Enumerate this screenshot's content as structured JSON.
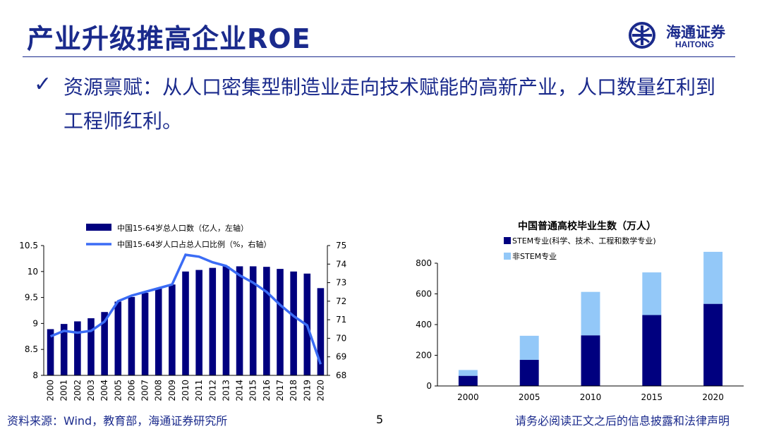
{
  "slide": {
    "title": "产业升级推高企业ROE",
    "bullet": "资源禀赋：从人口密集型制造业走向技术赋能的高新产业，人口数量红利到工程师红利。",
    "check_icon": "check-icon",
    "page_number": "5",
    "source": "资料来源：Wind，教育部，海通证券研究所",
    "disclaimer": "请务必阅读正文之后的信息披露和法律声明"
  },
  "logo": {
    "name": "海通证券",
    "sub": "HAITONG",
    "color": "#1a2a8c"
  },
  "chart_data": [
    {
      "type": "bar",
      "title": "",
      "categories": [
        "2000",
        "2001",
        "2002",
        "2003",
        "2004",
        "2005",
        "2006",
        "2007",
        "2008",
        "2009",
        "2010",
        "2011",
        "2012",
        "2013",
        "2014",
        "2015",
        "2016",
        "2017",
        "2018",
        "2019",
        "2020"
      ],
      "series": [
        {
          "name": "中国15-64岁总人口数（亿人，左轴）",
          "type": "bar",
          "axis": "left",
          "color": "#00007f",
          "values": [
            8.89,
            8.99,
            9.04,
            9.1,
            9.22,
            9.42,
            9.51,
            9.59,
            9.67,
            9.75,
            10.0,
            10.03,
            10.07,
            10.1,
            10.1,
            10.1,
            10.09,
            10.05,
            10.0,
            9.96,
            9.68
          ]
        },
        {
          "name": "中国15-64岁人口占总人口比例（%，右轴）",
          "type": "line",
          "axis": "right",
          "color": "#3b6cf5",
          "values": [
            70.1,
            70.4,
            70.3,
            70.4,
            70.9,
            72.0,
            72.3,
            72.5,
            72.7,
            72.9,
            74.5,
            74.4,
            74.1,
            73.9,
            73.4,
            73.0,
            72.5,
            71.8,
            71.2,
            70.7,
            68.6
          ]
        }
      ],
      "y_left": {
        "min": 8,
        "max": 10.5,
        "ticks": [
          "8",
          "8.5",
          "9",
          "9.5",
          "10",
          "10.5"
        ]
      },
      "y_right": {
        "min": 68,
        "max": 75,
        "ticks": [
          "68",
          "69",
          "70",
          "71",
          "72",
          "73",
          "74",
          "75"
        ]
      },
      "legend_position": "top"
    },
    {
      "type": "bar",
      "title": "中国普通高校毕业生数（万人）",
      "stacked": true,
      "categories": [
        "2000",
        "2005",
        "2010",
        "2015",
        "2020"
      ],
      "series": [
        {
          "name": "STEM专业(科学、技术、工程和数学专业)",
          "color": "#00007f",
          "values": [
            66,
            170,
            330,
            462,
            535
          ]
        },
        {
          "name": "非STEM专业",
          "color": "#93c8f8",
          "values": [
            38,
            157,
            283,
            278,
            339
          ]
        }
      ],
      "y": {
        "min": 0,
        "max": 800,
        "ticks": [
          "0",
          "200",
          "400",
          "600",
          "800"
        ]
      },
      "legend_position": "top"
    }
  ]
}
